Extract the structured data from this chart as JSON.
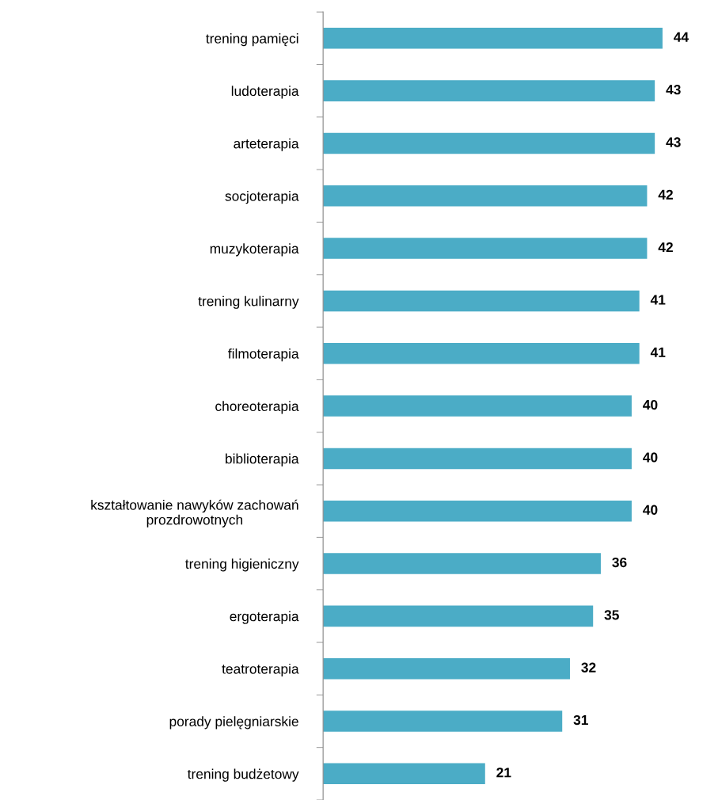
{
  "chart_data": {
    "type": "bar",
    "orientation": "horizontal",
    "categories": [
      "trening pamięci",
      "ludoterapia",
      "arteterapia",
      "socjoterapia",
      "muzykoterapia",
      "trening kulinarny",
      "filmoterapia",
      "choreoterapia",
      "biblioterapia",
      "kształtowanie nawyków zachowań\nprozdrowotnych",
      "trening higieniczny",
      "ergoterapia",
      "teatroterapia",
      "porady pielęgniarskie",
      "trening budżetowy"
    ],
    "values": [
      44,
      43,
      43,
      42,
      42,
      41,
      41,
      40,
      40,
      40,
      36,
      35,
      32,
      31,
      21
    ],
    "color": "#4bacc6",
    "data_labels": true,
    "grid": false,
    "legend": false
  }
}
